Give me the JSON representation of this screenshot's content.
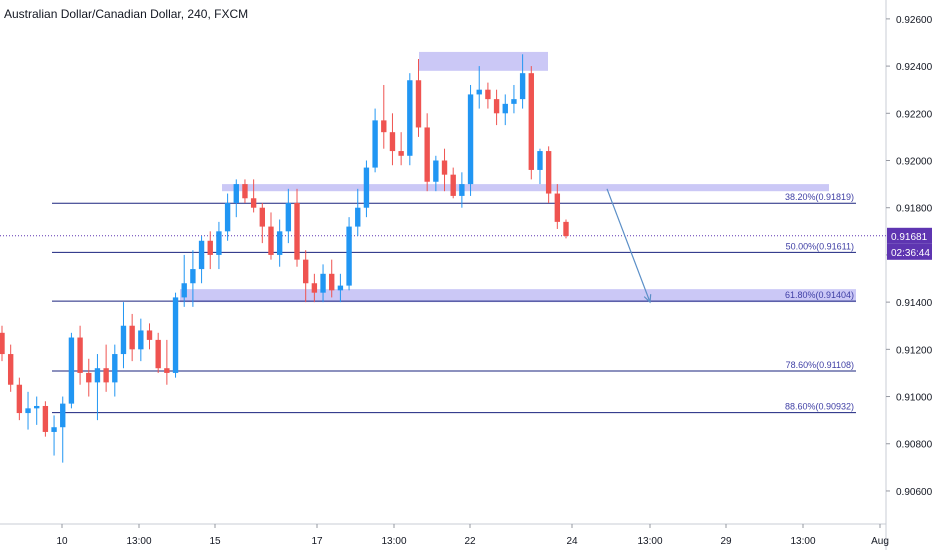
{
  "chart_data": {
    "type": "candlestick",
    "title": "Australian Dollar/Canadian Dollar, 240, FXCM",
    "ylim": [
      0.9046,
      0.9268
    ],
    "y_ticks": [
      "0.92600",
      "0.92400",
      "0.92200",
      "0.92000",
      "0.91800",
      "0.91600",
      "0.91400",
      "0.91200",
      "0.91000",
      "0.90800",
      "0.90600"
    ],
    "y_tick_values": [
      0.926,
      0.924,
      0.922,
      0.92,
      0.918,
      0.916,
      0.914,
      0.912,
      0.91,
      0.908,
      0.906
    ],
    "x_ticks": [
      "10",
      "13:00",
      "15",
      "17",
      "13:00",
      "22",
      "24",
      "13:00",
      "29",
      "13:00",
      "Aug"
    ],
    "colors": {
      "up": "#2196f3",
      "down": "#ef5350",
      "fib": "#1a237e",
      "zone": "#b9b6f3",
      "price": "#5e35b1",
      "arrow": "#5b8fc7"
    },
    "candles": [
      [
        0.9127,
        0.913,
        0.9115,
        0.9118
      ],
      [
        0.9118,
        0.9122,
        0.9102,
        0.9105
      ],
      [
        0.9105,
        0.9108,
        0.909,
        0.9093
      ],
      [
        0.9093,
        0.9102,
        0.9086,
        0.9095
      ],
      [
        0.9095,
        0.91,
        0.9088,
        0.9096
      ],
      [
        0.9096,
        0.9098,
        0.9083,
        0.9085
      ],
      [
        0.9085,
        0.9092,
        0.9075,
        0.9087
      ],
      [
        0.9087,
        0.91,
        0.9072,
        0.9097
      ],
      [
        0.9097,
        0.9127,
        0.9095,
        0.9125
      ],
      [
        0.9125,
        0.913,
        0.9105,
        0.911
      ],
      [
        0.911,
        0.9116,
        0.91,
        0.9106
      ],
      [
        0.9106,
        0.9118,
        0.909,
        0.9112
      ],
      [
        0.9112,
        0.9122,
        0.9102,
        0.9106
      ],
      [
        0.9106,
        0.9122,
        0.91,
        0.9118
      ],
      [
        0.9118,
        0.914,
        0.9112,
        0.913
      ],
      [
        0.913,
        0.9135,
        0.9115,
        0.912
      ],
      [
        0.912,
        0.9133,
        0.9115,
        0.9128
      ],
      [
        0.9128,
        0.9131,
        0.912,
        0.9124
      ],
      [
        0.9124,
        0.9127,
        0.911,
        0.9112
      ],
      [
        0.9112,
        0.9124,
        0.9105,
        0.911
      ],
      [
        0.911,
        0.9144,
        0.9108,
        0.9142
      ],
      [
        0.9142,
        0.916,
        0.9138,
        0.9148
      ],
      [
        0.9148,
        0.9162,
        0.9138,
        0.9154
      ],
      [
        0.9154,
        0.9168,
        0.9148,
        0.9166
      ],
      [
        0.9166,
        0.917,
        0.9154,
        0.916
      ],
      [
        0.916,
        0.9174,
        0.9154,
        0.917
      ],
      [
        0.917,
        0.9186,
        0.9166,
        0.9182
      ],
      [
        0.9182,
        0.9192,
        0.9176,
        0.919
      ],
      [
        0.919,
        0.9192,
        0.9182,
        0.9184
      ],
      [
        0.9184,
        0.9192,
        0.9178,
        0.918
      ],
      [
        0.918,
        0.9182,
        0.9165,
        0.9172
      ],
      [
        0.9172,
        0.9178,
        0.9158,
        0.916
      ],
      [
        0.916,
        0.9175,
        0.9155,
        0.917
      ],
      [
        0.917,
        0.9188,
        0.9165,
        0.9182
      ],
      [
        0.9182,
        0.9188,
        0.9155,
        0.9158
      ],
      [
        0.9158,
        0.9162,
        0.914,
        0.9148
      ],
      [
        0.9148,
        0.9152,
        0.914,
        0.9144
      ],
      [
        0.9144,
        0.9156,
        0.914,
        0.9152
      ],
      [
        0.9152,
        0.9158,
        0.9142,
        0.9145
      ],
      [
        0.9145,
        0.9152,
        0.914,
        0.9147
      ],
      [
        0.9147,
        0.9176,
        0.9145,
        0.9172
      ],
      [
        0.9172,
        0.9188,
        0.9168,
        0.918
      ],
      [
        0.918,
        0.92,
        0.9176,
        0.9197
      ],
      [
        0.9197,
        0.9222,
        0.9195,
        0.9217
      ],
      [
        0.9217,
        0.9232,
        0.9205,
        0.9212
      ],
      [
        0.9212,
        0.922,
        0.9198,
        0.9204
      ],
      [
        0.9204,
        0.9212,
        0.9198,
        0.9202
      ],
      [
        0.9202,
        0.9237,
        0.9198,
        0.9234
      ],
      [
        0.9234,
        0.9243,
        0.921,
        0.9214
      ],
      [
        0.9214,
        0.922,
        0.9187,
        0.9191
      ],
      [
        0.9191,
        0.9202,
        0.9187,
        0.92
      ],
      [
        0.92,
        0.9205,
        0.9187,
        0.9194
      ],
      [
        0.9194,
        0.9197,
        0.9184,
        0.9185
      ],
      [
        0.9185,
        0.9195,
        0.918,
        0.919
      ],
      [
        0.919,
        0.9232,
        0.9185,
        0.9228
      ],
      [
        0.9228,
        0.924,
        0.9222,
        0.923
      ],
      [
        0.923,
        0.9233,
        0.9222,
        0.9226
      ],
      [
        0.9226,
        0.923,
        0.9215,
        0.922
      ],
      [
        0.922,
        0.9228,
        0.9215,
        0.9224
      ],
      [
        0.9224,
        0.9232,
        0.922,
        0.9226
      ],
      [
        0.9226,
        0.9245,
        0.9222,
        0.9237
      ],
      [
        0.9237,
        0.924,
        0.9192,
        0.9196
      ],
      [
        0.9196,
        0.9205,
        0.919,
        0.9204
      ],
      [
        0.9204,
        0.9206,
        0.9182,
        0.9186
      ],
      [
        0.9186,
        0.919,
        0.9171,
        0.9174
      ],
      [
        0.9174,
        0.9175,
        0.9167,
        0.9168
      ]
    ],
    "fib_levels": [
      {
        "label": "38.20%(0.91819)",
        "value": 0.91819
      },
      {
        "label": "50.00%(0.91611)",
        "value": 0.91611
      },
      {
        "label": "61.80%(0.91404)",
        "value": 0.91404
      },
      {
        "label": "78.60%(0.91108)",
        "value": 0.91108
      },
      {
        "label": "88.60%(0.90932)",
        "value": 0.90932
      }
    ],
    "zones": [
      {
        "top": 0.9246,
        "bottom": 0.9238
      },
      {
        "top": 0.919,
        "bottom": 0.9187
      },
      {
        "top": 0.91455,
        "bottom": 0.914
      }
    ],
    "current_price": {
      "label": "0.91681",
      "value": 0.91681,
      "countdown": "02:36:44"
    },
    "arrow": {
      "from": 0.9188,
      "to": 0.914
    }
  }
}
